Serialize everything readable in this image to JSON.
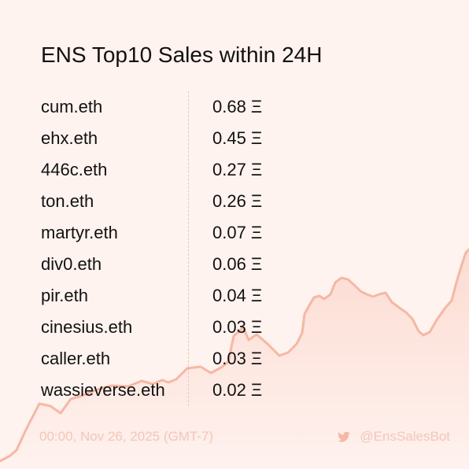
{
  "colors": {
    "background": "#fff3f0",
    "text": "#111111",
    "accent": "#f7b7a3",
    "footer_text": "#f6c6b8"
  },
  "title": "ENS Top10 Sales within 24H",
  "currency_symbol": "Ξ",
  "sales": [
    {
      "name": "cum.eth",
      "price": "0.68 Ξ"
    },
    {
      "name": "ehx.eth",
      "price": "0.45 Ξ"
    },
    {
      "name": "446c.eth",
      "price": "0.27 Ξ"
    },
    {
      "name": "ton.eth",
      "price": "0.26 Ξ"
    },
    {
      "name": "martyr.eth",
      "price": "0.07 Ξ"
    },
    {
      "name": "div0.eth",
      "price": "0.06 Ξ"
    },
    {
      "name": "pir.eth",
      "price": "0.04 Ξ"
    },
    {
      "name": "cinesius.eth",
      "price": "0.03 Ξ"
    },
    {
      "name": "caller.eth",
      "price": "0.03 Ξ"
    },
    {
      "name": "wassieverse.eth",
      "price": "0.02 Ξ"
    }
  ],
  "footer": {
    "timestamp": "00:00, Nov 26, 2025 (GMT-7)",
    "icon": "twitter-bird-icon",
    "handle": "@EnsSalesBot"
  }
}
